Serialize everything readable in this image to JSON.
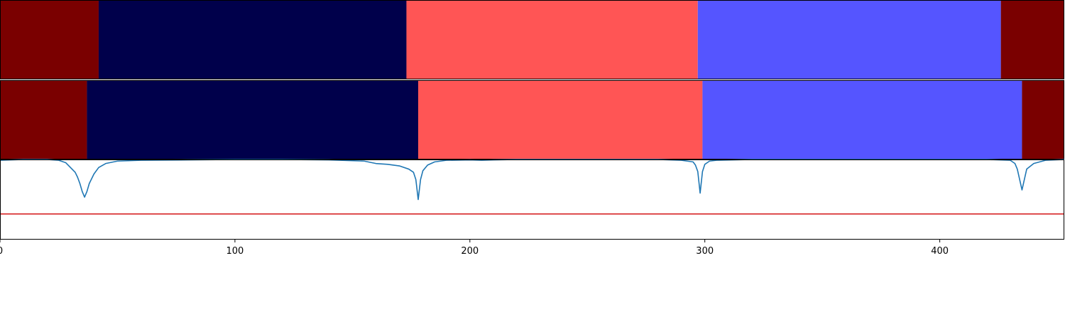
{
  "chart_data": [
    {
      "type": "heatmap",
      "title": "",
      "xlabel": "",
      "ylabel": "",
      "xlim": [
        0,
        453
      ],
      "segments": [
        {
          "start": 0,
          "end": 42,
          "color": "#7a0000"
        },
        {
          "start": 42,
          "end": 173,
          "color": "#00004b"
        },
        {
          "start": 173,
          "end": 297,
          "color": "#ff5555"
        },
        {
          "start": 297,
          "end": 426,
          "color": "#5555ff"
        },
        {
          "start": 426,
          "end": 453,
          "color": "#7a0000"
        }
      ]
    },
    {
      "type": "heatmap",
      "title": "",
      "xlabel": "",
      "ylabel": "",
      "xlim": [
        0,
        453
      ],
      "segments": [
        {
          "start": 0,
          "end": 37,
          "color": "#7a0000"
        },
        {
          "start": 37,
          "end": 178,
          "color": "#00004b"
        },
        {
          "start": 178,
          "end": 299,
          "color": "#ff5555"
        },
        {
          "start": 299,
          "end": 435,
          "color": "#5555ff"
        },
        {
          "start": 435,
          "end": 453,
          "color": "#7a0000"
        }
      ]
    },
    {
      "type": "line",
      "title": "",
      "xlabel": "",
      "ylabel": "",
      "xlim": [
        0,
        453
      ],
      "ylim": [
        0,
        1
      ],
      "xticks": [
        0,
        100,
        200,
        300,
        400
      ],
      "xtick_labels": [
        "0",
        "100",
        "200",
        "300",
        "400"
      ],
      "series": [
        {
          "color": "#1f77b4",
          "x": [
            0,
            10,
            20,
            25,
            28,
            30,
            32,
            33,
            34,
            35,
            36,
            37,
            38,
            40,
            42,
            45,
            50,
            60,
            80,
            100,
            120,
            140,
            155,
            160,
            165,
            170,
            174,
            176,
            177,
            178,
            179,
            180,
            182,
            185,
            190,
            200,
            205,
            210,
            220,
            250,
            280,
            290,
            295,
            296,
            297,
            298,
            299,
            300,
            302,
            305,
            320,
            350,
            380,
            400,
            420,
            430,
            432,
            433,
            434,
            435,
            436,
            437,
            440,
            445,
            453
          ],
          "y": [
            0.99,
            1.0,
            1.0,
            0.99,
            0.96,
            0.9,
            0.84,
            0.78,
            0.7,
            0.6,
            0.53,
            0.6,
            0.7,
            0.82,
            0.9,
            0.95,
            0.98,
            0.99,
            0.995,
            1.0,
            1.0,
            0.995,
            0.98,
            0.95,
            0.94,
            0.92,
            0.88,
            0.84,
            0.75,
            0.5,
            0.75,
            0.86,
            0.93,
            0.97,
            0.99,
            0.995,
            0.99,
            0.995,
            1.0,
            1.0,
            1.0,
            0.99,
            0.97,
            0.93,
            0.85,
            0.58,
            0.85,
            0.94,
            0.98,
            0.99,
            1.0,
            1.0,
            1.0,
            1.0,
            1.0,
            0.99,
            0.95,
            0.88,
            0.75,
            0.62,
            0.75,
            0.88,
            0.95,
            0.99,
            1.0
          ]
        },
        {
          "color": "#d62728",
          "x": [
            0,
            453
          ],
          "y": [
            0.32,
            0.32
          ]
        }
      ]
    }
  ]
}
